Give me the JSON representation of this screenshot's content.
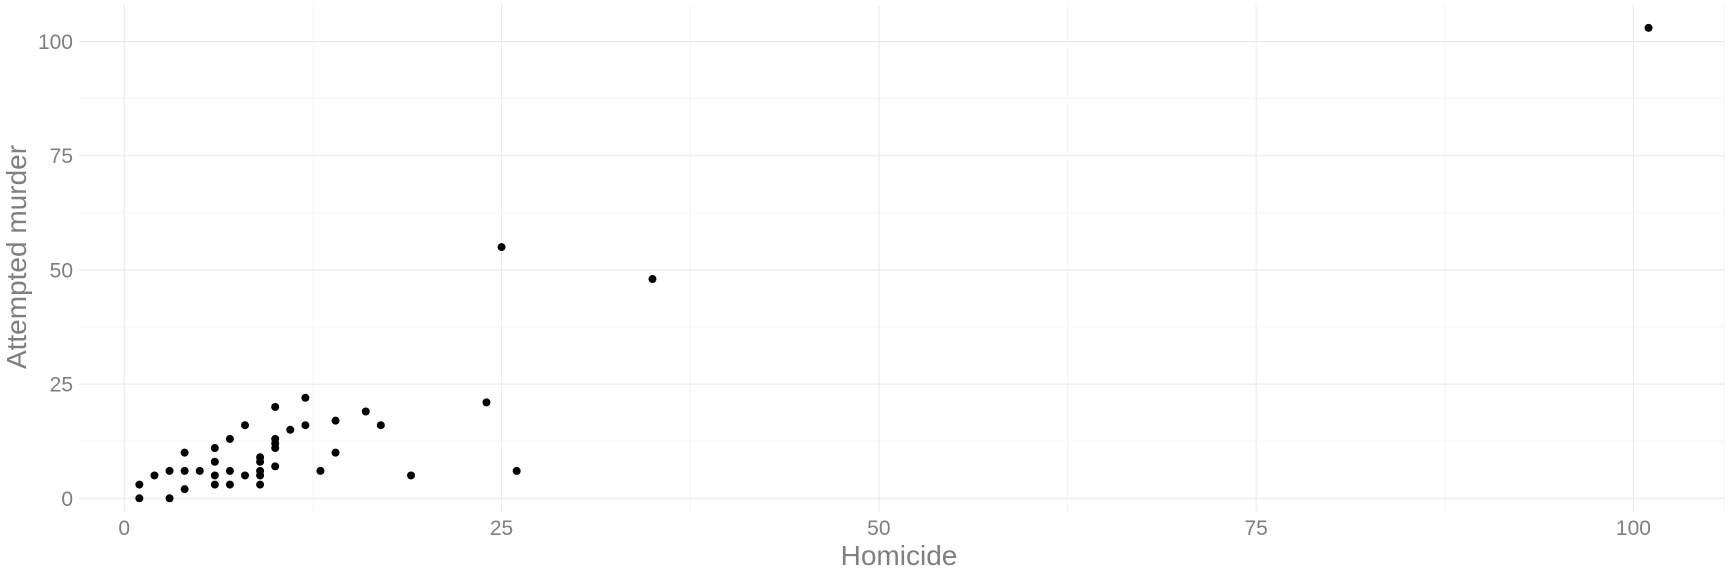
{
  "chart_data": {
    "type": "scatter",
    "title": "",
    "xlabel": "Homicide",
    "ylabel": "Attempted murder",
    "xlim": [
      -3,
      106
    ],
    "ylim": [
      -3,
      108
    ],
    "x_ticks": [
      0,
      25,
      50,
      75,
      100
    ],
    "y_ticks": [
      0,
      25,
      50,
      75,
      100
    ],
    "grid": true,
    "legend": "none",
    "point_color": "#000000",
    "points": [
      {
        "x": 1,
        "y": 0
      },
      {
        "x": 1,
        "y": 3
      },
      {
        "x": 2,
        "y": 5
      },
      {
        "x": 3,
        "y": 0
      },
      {
        "x": 3,
        "y": 6
      },
      {
        "x": 4,
        "y": 2
      },
      {
        "x": 4,
        "y": 6
      },
      {
        "x": 4,
        "y": 10
      },
      {
        "x": 5,
        "y": 6
      },
      {
        "x": 6,
        "y": 3
      },
      {
        "x": 6,
        "y": 5
      },
      {
        "x": 6,
        "y": 8
      },
      {
        "x": 6,
        "y": 11
      },
      {
        "x": 7,
        "y": 3
      },
      {
        "x": 7,
        "y": 6
      },
      {
        "x": 7,
        "y": 13
      },
      {
        "x": 8,
        "y": 5
      },
      {
        "x": 8,
        "y": 16
      },
      {
        "x": 9,
        "y": 3
      },
      {
        "x": 9,
        "y": 5
      },
      {
        "x": 9,
        "y": 6
      },
      {
        "x": 9,
        "y": 8
      },
      {
        "x": 9,
        "y": 9
      },
      {
        "x": 10,
        "y": 7
      },
      {
        "x": 10,
        "y": 11
      },
      {
        "x": 10,
        "y": 12
      },
      {
        "x": 10,
        "y": 13
      },
      {
        "x": 10,
        "y": 20
      },
      {
        "x": 11,
        "y": 15
      },
      {
        "x": 12,
        "y": 16
      },
      {
        "x": 12,
        "y": 22
      },
      {
        "x": 13,
        "y": 6
      },
      {
        "x": 14,
        "y": 10
      },
      {
        "x": 14,
        "y": 17
      },
      {
        "x": 16,
        "y": 19
      },
      {
        "x": 17,
        "y": 16
      },
      {
        "x": 19,
        "y": 5
      },
      {
        "x": 24,
        "y": 21
      },
      {
        "x": 25,
        "y": 55
      },
      {
        "x": 26,
        "y": 6
      },
      {
        "x": 35,
        "y": 48
      },
      {
        "x": 101,
        "y": 103
      }
    ]
  }
}
